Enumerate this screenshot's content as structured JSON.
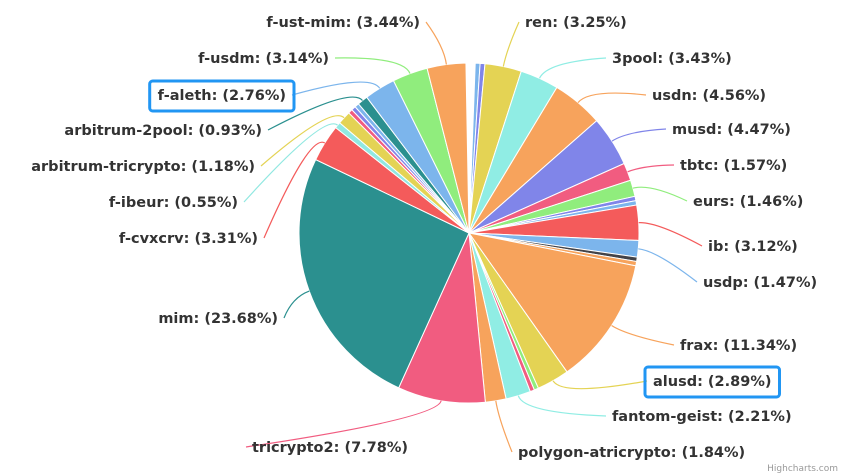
{
  "chart_data": {
    "type": "pie",
    "slices": [
      {
        "label": "ren: (3.25%)",
        "value": 3.25
      },
      {
        "label": "3pool: (3.43%)",
        "value": 3.43
      },
      {
        "label": "usdn: (4.56%)",
        "value": 4.56
      },
      {
        "label": "musd: (4.47%)",
        "value": 4.47
      },
      {
        "label": "tbtc: (1.57%)",
        "value": 1.57
      },
      {
        "label": "eurs: (1.46%)",
        "value": 1.46
      },
      {
        "label": "ib: (3.12%)",
        "value": 3.12
      },
      {
        "label": "usdp: (1.47%)",
        "value": 1.47
      },
      {
        "label": "frax: (11.34%)",
        "value": 11.34
      },
      {
        "label": "alusd: (2.89%)",
        "value": 2.89
      },
      {
        "label": "fantom-geist: (2.21%)",
        "value": 2.21
      },
      {
        "label": "polygon-atricrypto: (1.84%)",
        "value": 1.84
      },
      {
        "label": "tricrypto2: (7.78%)",
        "value": 7.78
      },
      {
        "label": "mim: (23.68%)",
        "value": 23.68
      },
      {
        "label": "f-cvxcrv: (3.31%)",
        "value": 3.31
      },
      {
        "label": "f-ibeur: (0.55%)",
        "value": 0.55
      },
      {
        "label": "arbitrum-tricrypto: (1.18%)",
        "value": 1.18
      },
      {
        "label": "arbitrum-2pool: (0.93%)",
        "value": 0.93
      },
      {
        "label": "f-aleth: (2.76%)",
        "value": 2.76
      },
      {
        "label": "f-usdm: (3.14%)",
        "value": 3.14
      },
      {
        "label": "f-ust-mim: (3.44%)",
        "value": 3.44
      }
    ],
    "highlighted": [
      "f-aleth: (2.76%)",
      "alusd: (2.89%)"
    ],
    "highlight_color": "#2196F3",
    "credit": "Highcharts.com"
  }
}
